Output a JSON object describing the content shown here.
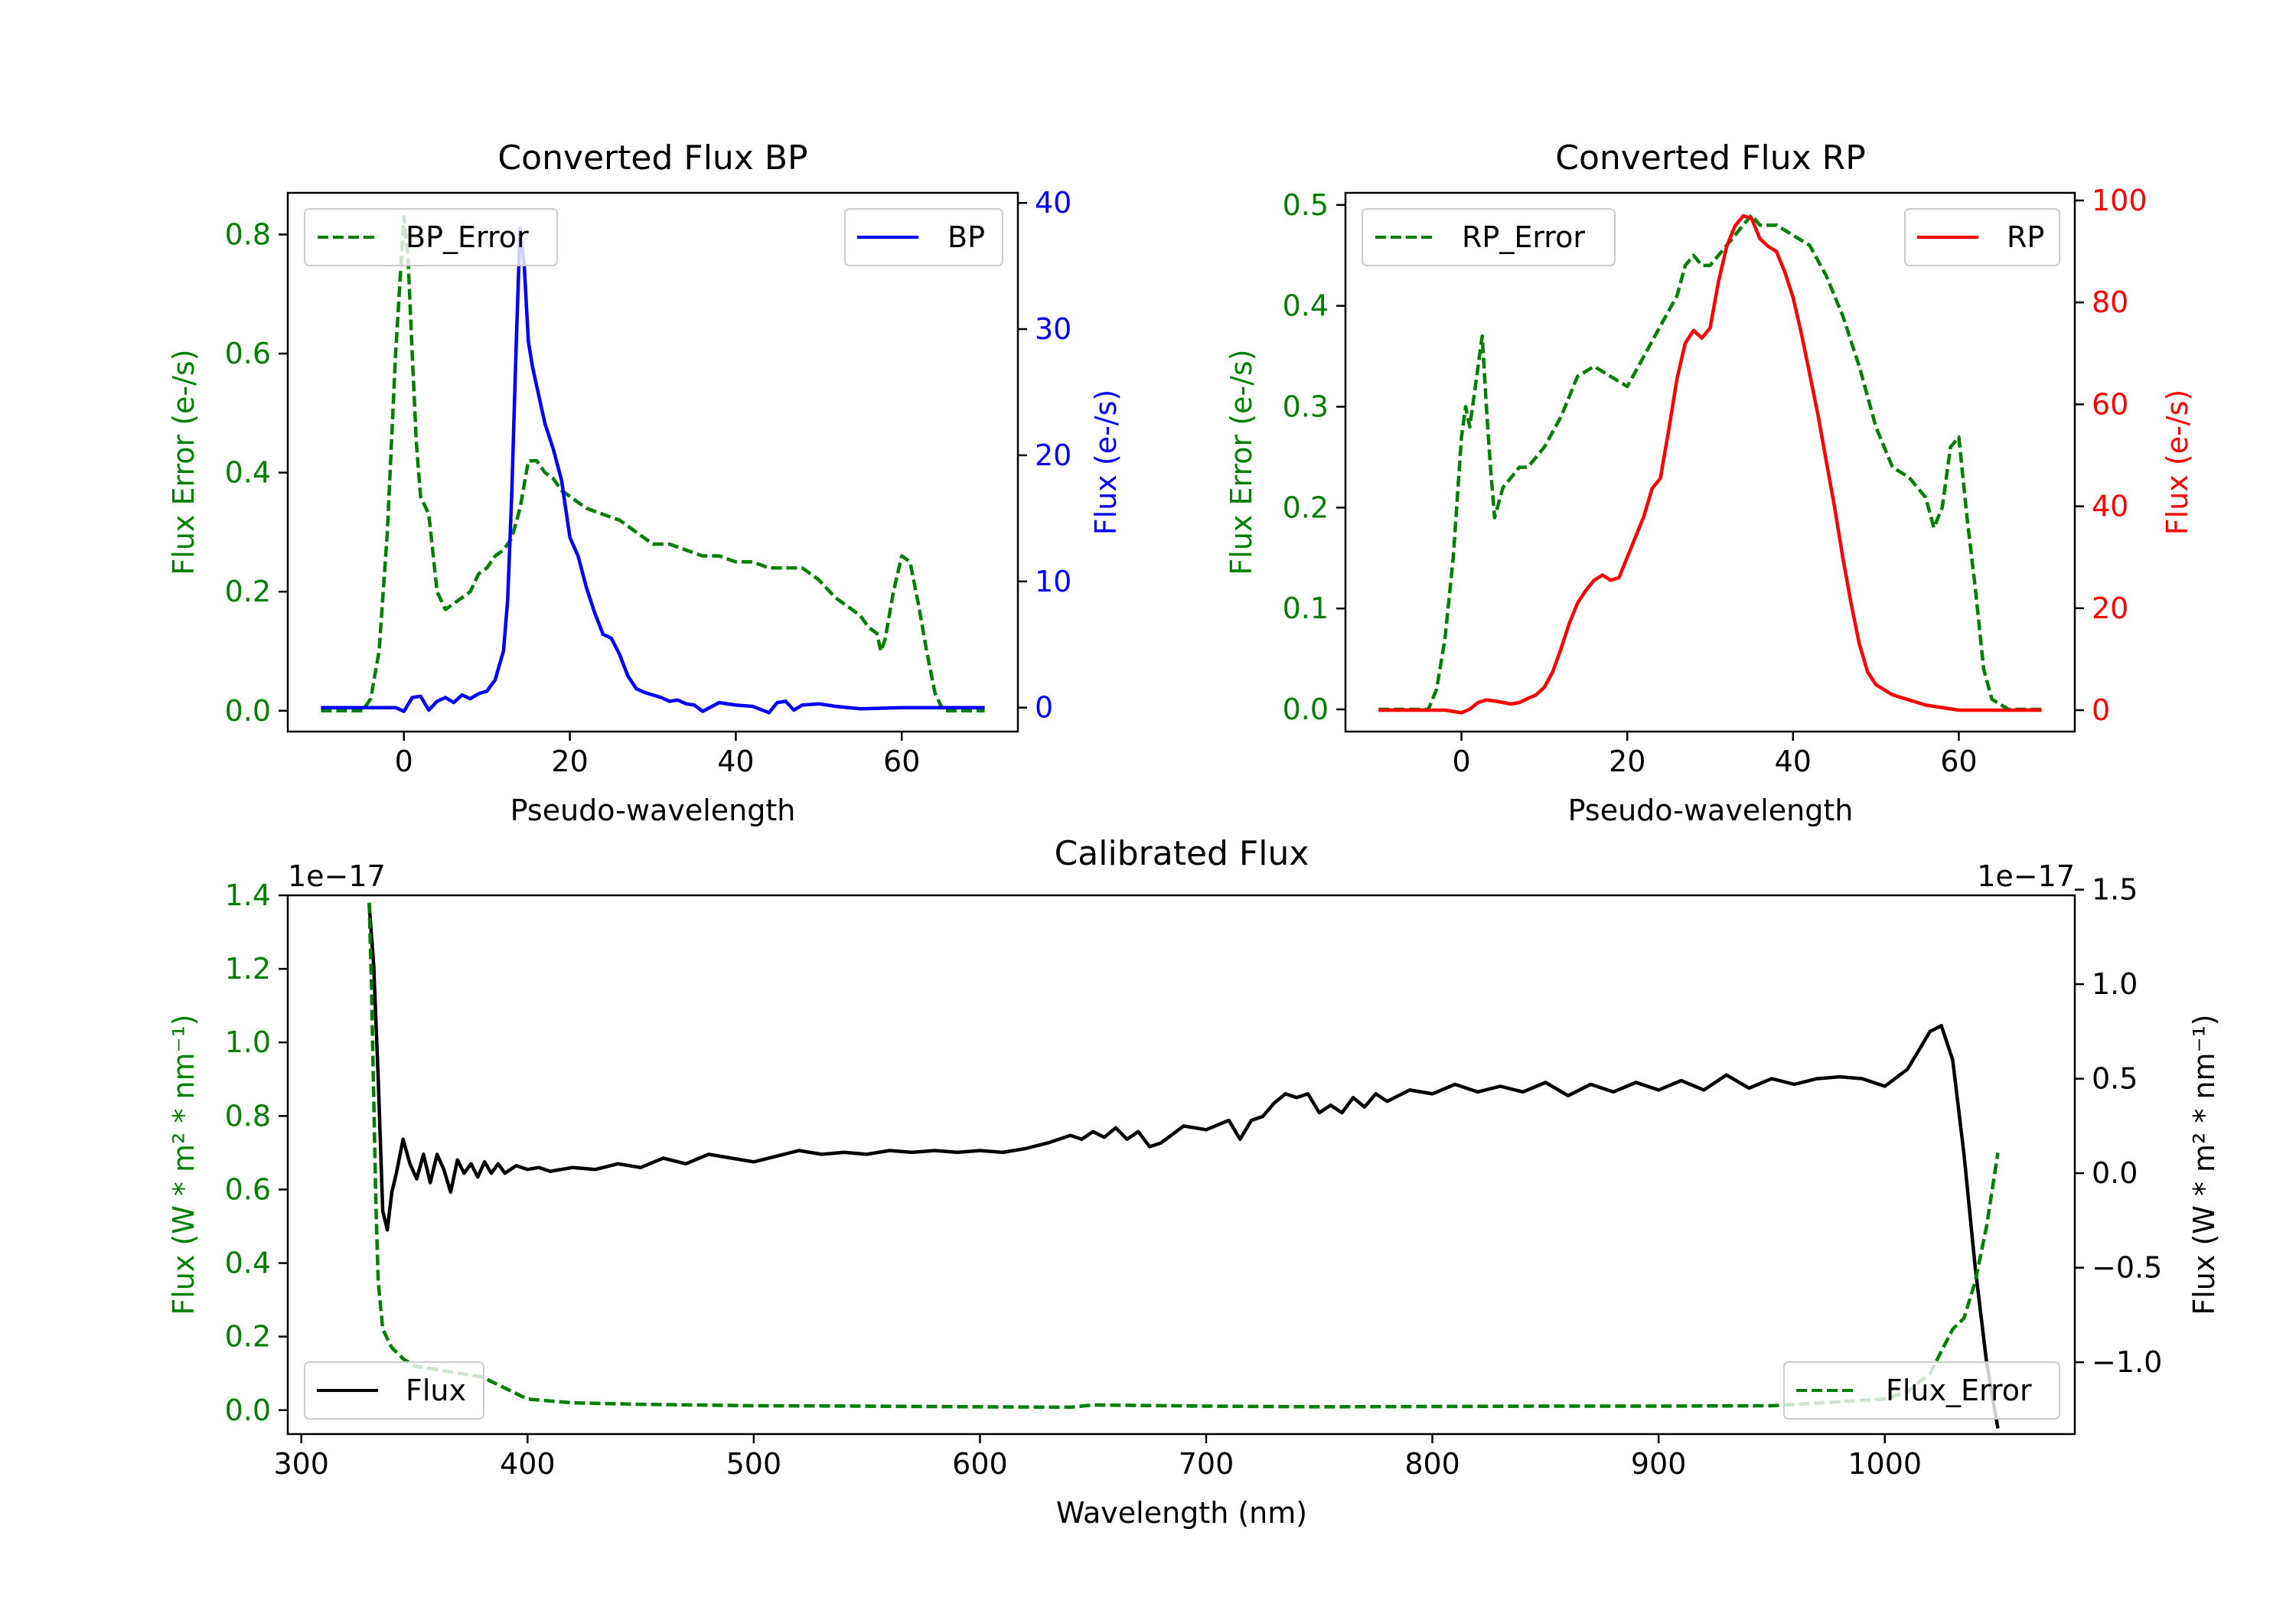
{
  "colors": {
    "green": "#007f00",
    "blue": "#0000ff",
    "red": "#ff0000",
    "black": "#000000"
  },
  "chart_data": [
    {
      "id": "bp",
      "type": "line",
      "title": "Converted Flux BP",
      "xlabel": "Pseudo-wavelength",
      "ylabel_left": "Flux Error (e-/s)",
      "ylabel_right": "Flux (e-/s)",
      "xlim": [
        -14,
        74
      ],
      "ylim_left": [
        -0.035,
        0.87
      ],
      "ylim_right": [
        -1.9,
        40.8
      ],
      "xticks": [
        0,
        20,
        40,
        60
      ],
      "yticks_left": [
        0.0,
        0.2,
        0.4,
        0.6,
        0.8
      ],
      "yticks_right": [
        0,
        10,
        20,
        30,
        40
      ],
      "legend_left": "top-left",
      "legend_right": "top-right",
      "series": [
        {
          "name": "BP_Error",
          "axis": "left",
          "style": "dashed",
          "color": "green",
          "x": [
            -10,
            -5,
            -4,
            -3,
            -2,
            -1,
            0,
            0.5,
            1,
            1.5,
            2,
            3,
            4,
            5,
            6,
            7,
            8,
            9,
            10,
            11,
            12,
            13,
            14,
            15,
            16,
            17,
            18,
            19,
            20,
            22,
            24,
            26,
            28,
            30,
            32,
            34,
            36,
            38,
            40,
            42,
            44,
            46,
            48,
            50,
            52,
            54,
            55,
            56,
            57,
            57.5,
            58,
            59,
            60,
            61,
            62,
            63,
            64,
            65,
            66,
            70
          ],
          "y": [
            0,
            0,
            0.02,
            0.1,
            0.3,
            0.6,
            0.83,
            0.76,
            0.6,
            0.45,
            0.36,
            0.33,
            0.2,
            0.17,
            0.18,
            0.19,
            0.2,
            0.23,
            0.24,
            0.26,
            0.27,
            0.29,
            0.34,
            0.42,
            0.42,
            0.4,
            0.39,
            0.37,
            0.36,
            0.34,
            0.33,
            0.32,
            0.3,
            0.28,
            0.28,
            0.27,
            0.26,
            0.26,
            0.25,
            0.25,
            0.24,
            0.24,
            0.24,
            0.22,
            0.19,
            0.17,
            0.16,
            0.14,
            0.13,
            0.1,
            0.12,
            0.2,
            0.26,
            0.25,
            0.18,
            0.1,
            0.03,
            0,
            0,
            0
          ]
        },
        {
          "name": "BP",
          "axis": "right",
          "style": "solid",
          "color": "blue",
          "x": [
            -10,
            -6,
            -4,
            -2,
            -1,
            0,
            1,
            2,
            3,
            4,
            5,
            6,
            7,
            8,
            9,
            10,
            11,
            12,
            12.5,
            13,
            13.5,
            14,
            14.5,
            15,
            15.5,
            16,
            17,
            18,
            19,
            20,
            21,
            22,
            23,
            24,
            25,
            26,
            27,
            28,
            29,
            30,
            31,
            32,
            33,
            34,
            35,
            36,
            38,
            40,
            42,
            44,
            45,
            46,
            47,
            48,
            50,
            52,
            55,
            60,
            65,
            70
          ],
          "y": [
            0,
            0,
            0,
            0,
            0,
            -0.3,
            0.8,
            0.9,
            -0.2,
            0.5,
            0.8,
            0.4,
            1.0,
            0.7,
            1.1,
            1.3,
            2.2,
            4.5,
            8.5,
            17,
            28,
            38,
            35,
            29,
            27,
            25.5,
            22.5,
            20.5,
            18,
            13.5,
            12,
            9.5,
            7.5,
            5.8,
            5.5,
            4.2,
            2.5,
            1.5,
            1.2,
            1.0,
            0.8,
            0.5,
            0.6,
            0.3,
            0.2,
            -0.3,
            0.4,
            0.2,
            0.1,
            -0.4,
            0.4,
            0.5,
            -0.2,
            0.2,
            0.3,
            0.1,
            -0.1,
            0,
            0,
            0
          ]
        }
      ]
    },
    {
      "id": "rp",
      "type": "line",
      "title": "Converted Flux RP",
      "xlabel": "Pseudo-wavelength",
      "ylabel_left": "Flux Error (e-/s)",
      "ylabel_right": "Flux (e-/s)",
      "xlim": [
        -14,
        74
      ],
      "ylim_left": [
        -0.022,
        0.512
      ],
      "ylim_right": [
        -4.2,
        101.5
      ],
      "xticks": [
        0,
        20,
        40,
        60
      ],
      "yticks_left": [
        0.0,
        0.1,
        0.2,
        0.3,
        0.4,
        0.5
      ],
      "yticks_right": [
        0,
        20,
        40,
        60,
        80,
        100
      ],
      "legend_left": "top-left",
      "legend_right": "top-right",
      "series": [
        {
          "name": "RP_Error",
          "axis": "left",
          "style": "dashed",
          "color": "green",
          "x": [
            -10,
            -4,
            -3,
            -2,
            -1,
            0,
            0.5,
            1,
            1.5,
            2,
            2.5,
            3,
            3.5,
            4,
            5,
            6,
            7,
            8,
            10,
            12,
            13,
            14,
            16,
            18,
            20,
            22,
            24,
            26,
            27,
            28,
            29,
            30,
            32,
            34,
            35,
            36,
            38,
            40,
            42,
            44,
            46,
            48,
            50,
            52,
            54,
            56,
            57,
            58,
            59,
            60,
            61,
            62,
            63,
            64,
            66,
            70
          ],
          "y": [
            0,
            0,
            0.02,
            0.07,
            0.15,
            0.27,
            0.3,
            0.28,
            0.31,
            0.34,
            0.37,
            0.3,
            0.24,
            0.19,
            0.22,
            0.23,
            0.24,
            0.24,
            0.26,
            0.29,
            0.31,
            0.33,
            0.34,
            0.33,
            0.32,
            0.35,
            0.38,
            0.41,
            0.44,
            0.45,
            0.44,
            0.44,
            0.46,
            0.48,
            0.49,
            0.48,
            0.48,
            0.47,
            0.46,
            0.43,
            0.39,
            0.34,
            0.28,
            0.24,
            0.23,
            0.21,
            0.18,
            0.2,
            0.26,
            0.27,
            0.19,
            0.12,
            0.04,
            0.01,
            0,
            0
          ]
        },
        {
          "name": "RP",
          "axis": "right",
          "style": "solid",
          "color": "red",
          "x": [
            -10,
            -5,
            -2,
            0,
            1,
            2,
            3,
            4,
            5,
            6,
            7,
            8,
            9,
            10,
            11,
            12,
            13,
            14,
            15,
            16,
            17,
            18,
            19,
            20,
            21,
            22,
            23,
            24,
            25,
            26,
            27,
            28,
            29,
            30,
            31,
            32,
            33,
            34,
            35,
            36,
            37,
            38,
            39,
            40,
            41,
            42,
            43,
            44,
            45,
            46,
            47,
            48,
            49,
            50,
            51,
            52,
            54,
            56,
            58,
            60,
            62,
            65,
            70
          ],
          "y": [
            0,
            0,
            0,
            -0.5,
            0.2,
            1.5,
            2.0,
            1.8,
            1.5,
            1.2,
            1.5,
            2.3,
            3.0,
            4.5,
            7.5,
            12,
            17,
            21,
            23.5,
            25.5,
            26.5,
            25.5,
            26,
            30,
            34,
            38,
            43.5,
            45.5,
            55,
            65,
            72,
            74.5,
            73,
            75,
            84,
            91,
            95,
            97,
            96.5,
            92.5,
            91,
            90,
            86,
            81,
            74,
            66,
            58,
            49,
            40,
            30,
            21,
            13,
            7.5,
            5,
            4,
            3,
            2,
            1,
            0.5,
            0,
            0,
            0,
            0
          ]
        }
      ]
    },
    {
      "id": "calibrated",
      "type": "line",
      "title": "Calibrated Flux",
      "xlabel": "Wavelength (nm)",
      "ylabel_left": "Flux (W * m² * nm⁻¹)",
      "ylabel_right": "Flux (W * m² * nm⁻¹)",
      "offset_left": "1e−17",
      "offset_right": "1e−17",
      "xlim": [
        294,
        1084
      ],
      "ylim_left": [
        -0.065,
        1.4
      ],
      "ylim_right": [
        -1.38,
        1.47
      ],
      "xticks": [
        300,
        400,
        500,
        600,
        700,
        800,
        900,
        1000
      ],
      "yticks_left": [
        0.0,
        0.2,
        0.4,
        0.6,
        0.8,
        1.0,
        1.2,
        1.4
      ],
      "yticks_right": [
        -1.0,
        -0.5,
        0.0,
        0.5,
        1.0,
        1.5
      ],
      "ytick_labels_right": [
        "−1.0",
        "−0.5",
        "0.0",
        "0.5",
        "1.0",
        "1.5"
      ],
      "legend_left": "bottom-left",
      "legend_right": "bottom-right",
      "series": [
        {
          "name": "Flux",
          "axis": "right",
          "style": "solid",
          "color": "black",
          "x": [
            330,
            332,
            334,
            336,
            338,
            340,
            342,
            345,
            348,
            351,
            354,
            357,
            360,
            363,
            366,
            369,
            372,
            375,
            378,
            381,
            384,
            387,
            390,
            395,
            400,
            405,
            410,
            420,
            430,
            440,
            450,
            460,
            470,
            480,
            490,
            500,
            510,
            520,
            530,
            540,
            550,
            560,
            570,
            580,
            590,
            600,
            610,
            620,
            630,
            640,
            645,
            650,
            655,
            660,
            665,
            670,
            675,
            680,
            690,
            700,
            710,
            715,
            720,
            725,
            730,
            735,
            740,
            745,
            750,
            755,
            760,
            765,
            770,
            775,
            780,
            790,
            800,
            810,
            820,
            830,
            840,
            850,
            860,
            870,
            880,
            890,
            900,
            910,
            920,
            930,
            940,
            950,
            960,
            970,
            980,
            990,
            1000,
            1010,
            1015,
            1020,
            1025,
            1030,
            1035,
            1040,
            1045,
            1050
          ],
          "y": [
            1.42,
            1.1,
            0.5,
            -0.2,
            -0.3,
            -0.1,
            0.0,
            0.18,
            0.05,
            -0.03,
            0.1,
            -0.05,
            0.1,
            0.02,
            -0.1,
            0.07,
            0.0,
            0.05,
            -0.02,
            0.06,
            0.0,
            0.05,
            0.0,
            0.04,
            0.02,
            0.03,
            0.01,
            0.03,
            0.02,
            0.05,
            0.03,
            0.08,
            0.05,
            0.1,
            0.08,
            0.06,
            0.09,
            0.12,
            0.1,
            0.11,
            0.1,
            0.12,
            0.11,
            0.12,
            0.11,
            0.12,
            0.11,
            0.13,
            0.16,
            0.2,
            0.18,
            0.22,
            0.19,
            0.24,
            0.18,
            0.22,
            0.14,
            0.16,
            0.25,
            0.23,
            0.28,
            0.18,
            0.28,
            0.3,
            0.37,
            0.42,
            0.4,
            0.42,
            0.32,
            0.36,
            0.32,
            0.4,
            0.35,
            0.42,
            0.38,
            0.44,
            0.42,
            0.47,
            0.43,
            0.46,
            0.43,
            0.48,
            0.41,
            0.47,
            0.43,
            0.48,
            0.44,
            0.49,
            0.44,
            0.52,
            0.45,
            0.5,
            0.47,
            0.5,
            0.51,
            0.5,
            0.46,
            0.55,
            0.65,
            0.75,
            0.78,
            0.6,
            0.1,
            -0.5,
            -1.0,
            -1.35
          ]
        },
        {
          "name": "Flux_Error",
          "axis": "left",
          "style": "dashed",
          "color": "green",
          "x": [
            330,
            331,
            332,
            333,
            334,
            336,
            340,
            345,
            350,
            360,
            370,
            380,
            390,
            400,
            420,
            450,
            500,
            550,
            600,
            640,
            650,
            700,
            750,
            800,
            850,
            900,
            950,
            1000,
            1010,
            1020,
            1025,
            1030,
            1035,
            1040,
            1045,
            1050
          ],
          "y": [
            1.38,
            1.15,
            0.85,
            0.55,
            0.35,
            0.22,
            0.17,
            0.14,
            0.12,
            0.11,
            0.1,
            0.09,
            0.06,
            0.03,
            0.02,
            0.016,
            0.012,
            0.011,
            0.009,
            0.008,
            0.014,
            0.011,
            0.009,
            0.01,
            0.011,
            0.011,
            0.012,
            0.03,
            0.05,
            0.1,
            0.16,
            0.22,
            0.25,
            0.35,
            0.5,
            0.7
          ]
        }
      ]
    }
  ]
}
